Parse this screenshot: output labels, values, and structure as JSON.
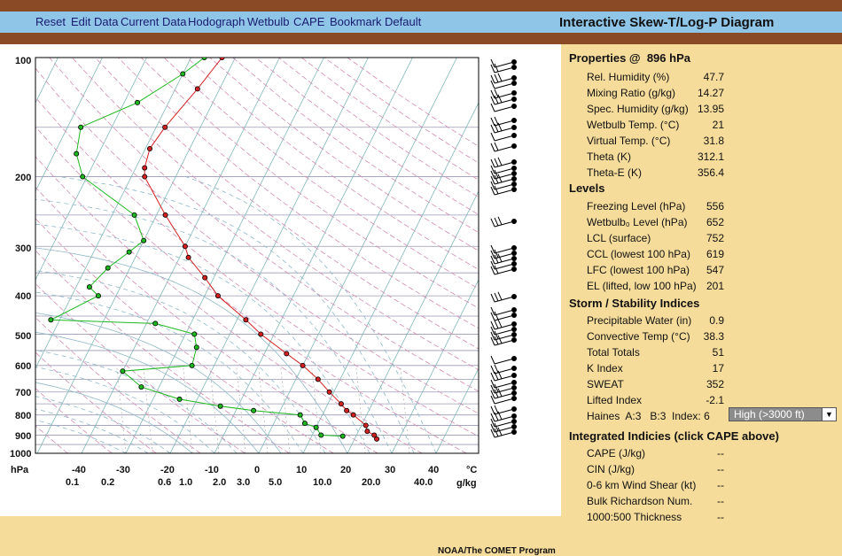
{
  "menu": {
    "items": [
      {
        "id": "reset",
        "label": "Reset"
      },
      {
        "id": "edit-data",
        "label": "Edit Data"
      },
      {
        "id": "current-data",
        "label": "Current Data"
      },
      {
        "id": "hodograph",
        "label": "Hodograph"
      },
      {
        "id": "wetbulb",
        "label": "Wetbulb"
      },
      {
        "id": "cape",
        "label": "CAPE"
      },
      {
        "id": "bookmark",
        "label": "Bookmark"
      },
      {
        "id": "default",
        "label": "Default"
      }
    ]
  },
  "title": "Interactive Skew-T/Log-P Diagram",
  "credit": "NOAA/The COMET Program",
  "chart_data": {
    "type": "skew-t",
    "pressure_ticks": [
      "100",
      "200",
      "300",
      "400",
      "500",
      "600",
      "700",
      "800",
      "900",
      "1000"
    ],
    "pressure_unit": "hPa",
    "temperature_ticks": [
      "-40",
      "-30",
      "-20",
      "-10",
      "0",
      "10",
      "20",
      "30",
      "40"
    ],
    "temperature_unit": "°C",
    "mixing_ratio_ticks": [
      "0.1",
      "0.2",
      "0.6",
      "1.0",
      "2.0",
      "3.0",
      "5.0",
      "10.0",
      "20.0",
      "40.0"
    ],
    "mixing_ratio_unit": "g/kg",
    "temperature_profile": {
      "color": "#d42020",
      "points": [
        [
          100,
          -53
        ],
        [
          120,
          -55
        ],
        [
          150,
          -58
        ],
        [
          170,
          -59
        ],
        [
          190,
          -58
        ],
        [
          200,
          -57
        ],
        [
          250,
          -48
        ],
        [
          300,
          -40
        ],
        [
          320,
          -38
        ],
        [
          360,
          -32
        ],
        [
          400,
          -27
        ],
        [
          460,
          -18
        ],
        [
          500,
          -13
        ],
        [
          560,
          -5
        ],
        [
          600,
          0
        ],
        [
          650,
          5
        ],
        [
          700,
          9
        ],
        [
          750,
          13
        ],
        [
          780,
          15
        ],
        [
          800,
          17
        ],
        [
          850,
          21
        ],
        [
          880,
          22
        ],
        [
          900,
          24
        ],
        [
          920,
          25
        ]
      ]
    },
    "dewpoint_profile": {
      "color": "#1db81d",
      "points": [
        [
          100,
          -57
        ],
        [
          110,
          -60
        ],
        [
          130,
          -67
        ],
        [
          150,
          -77
        ],
        [
          175,
          -75
        ],
        [
          200,
          -71
        ],
        [
          250,
          -55
        ],
        [
          290,
          -50
        ],
        [
          310,
          -52
        ],
        [
          340,
          -55
        ],
        [
          380,
          -57
        ],
        [
          400,
          -54
        ],
        [
          460,
          -62
        ],
        [
          470,
          -38
        ],
        [
          500,
          -28
        ],
        [
          540,
          -26
        ],
        [
          600,
          -25
        ],
        [
          620,
          -40
        ],
        [
          680,
          -34
        ],
        [
          730,
          -24
        ],
        [
          760,
          -14
        ],
        [
          780,
          -6
        ],
        [
          800,
          5
        ],
        [
          840,
          7
        ],
        [
          860,
          10
        ],
        [
          900,
          12
        ],
        [
          905,
          17
        ]
      ]
    }
  },
  "properties": {
    "header": "Properties @",
    "level_value": "896",
    "level_unit": "hPa",
    "rows": [
      {
        "label": "Rel. Humidity (%)",
        "value": "47.7"
      },
      {
        "label": "Mixing Ratio (g/kg)",
        "value": "14.27"
      },
      {
        "label": "Spec. Humidity (g/kg)",
        "value": "13.95"
      },
      {
        "label": "Wetbulb Temp. (°C)",
        "value": "21"
      },
      {
        "label": "Virtual Temp. (°C)",
        "value": "31.8"
      },
      {
        "label": "Theta (K)",
        "value": "312.1"
      },
      {
        "label": "Theta-E (K)",
        "value": "356.4"
      }
    ]
  },
  "levels": {
    "header": "Levels",
    "rows": [
      {
        "label": "Freezing Level (hPa)",
        "value": "556"
      },
      {
        "label": "Wetbulb₀ Level (hPa)",
        "value": "652"
      },
      {
        "label": "LCL (surface)",
        "value": "752"
      },
      {
        "label": "CCL (lowest 100 hPa)",
        "value": "619"
      },
      {
        "label": "LFC (lowest 100 hPa)",
        "value": "547"
      },
      {
        "label": "EL (lifted, low 100 hPa)",
        "value": "201"
      }
    ]
  },
  "storm": {
    "header": "Storm / Stability Indices",
    "rows": [
      {
        "label": "Precipitable Water (in)",
        "value": "0.9"
      },
      {
        "label": "Convective Temp (°C)",
        "value": "38.3"
      },
      {
        "label": "Total Totals",
        "value": "51"
      },
      {
        "label": "K Index",
        "value": "17"
      },
      {
        "label": "SWEAT",
        "value": "352"
      },
      {
        "label": "Lifted Index",
        "value": "-2.1"
      }
    ],
    "haines_text": "Haines  A:3   B:3  Index: 6",
    "haines_selected": "High (>3000 ft)"
  },
  "integrated": {
    "header": "Integrated Indicies (click CAPE above)",
    "rows": [
      {
        "label": "CAPE (J/kg)",
        "value": "--"
      },
      {
        "label": "CIN (J/kg)",
        "value": "--"
      },
      {
        "label": "0-6 km Wind Shear (kt)",
        "value": "--"
      },
      {
        "label": "Bulk Richardson Num.",
        "value": "--"
      },
      {
        "label": "1000:500 Thickness",
        "value": "--"
      }
    ]
  },
  "colors": {
    "header_brown": "#8a4a25",
    "menu_blue": "#8fc6e8",
    "panel_tan": "#f6dc9a",
    "temp_red": "#d42020",
    "dew_green": "#1db81d"
  }
}
